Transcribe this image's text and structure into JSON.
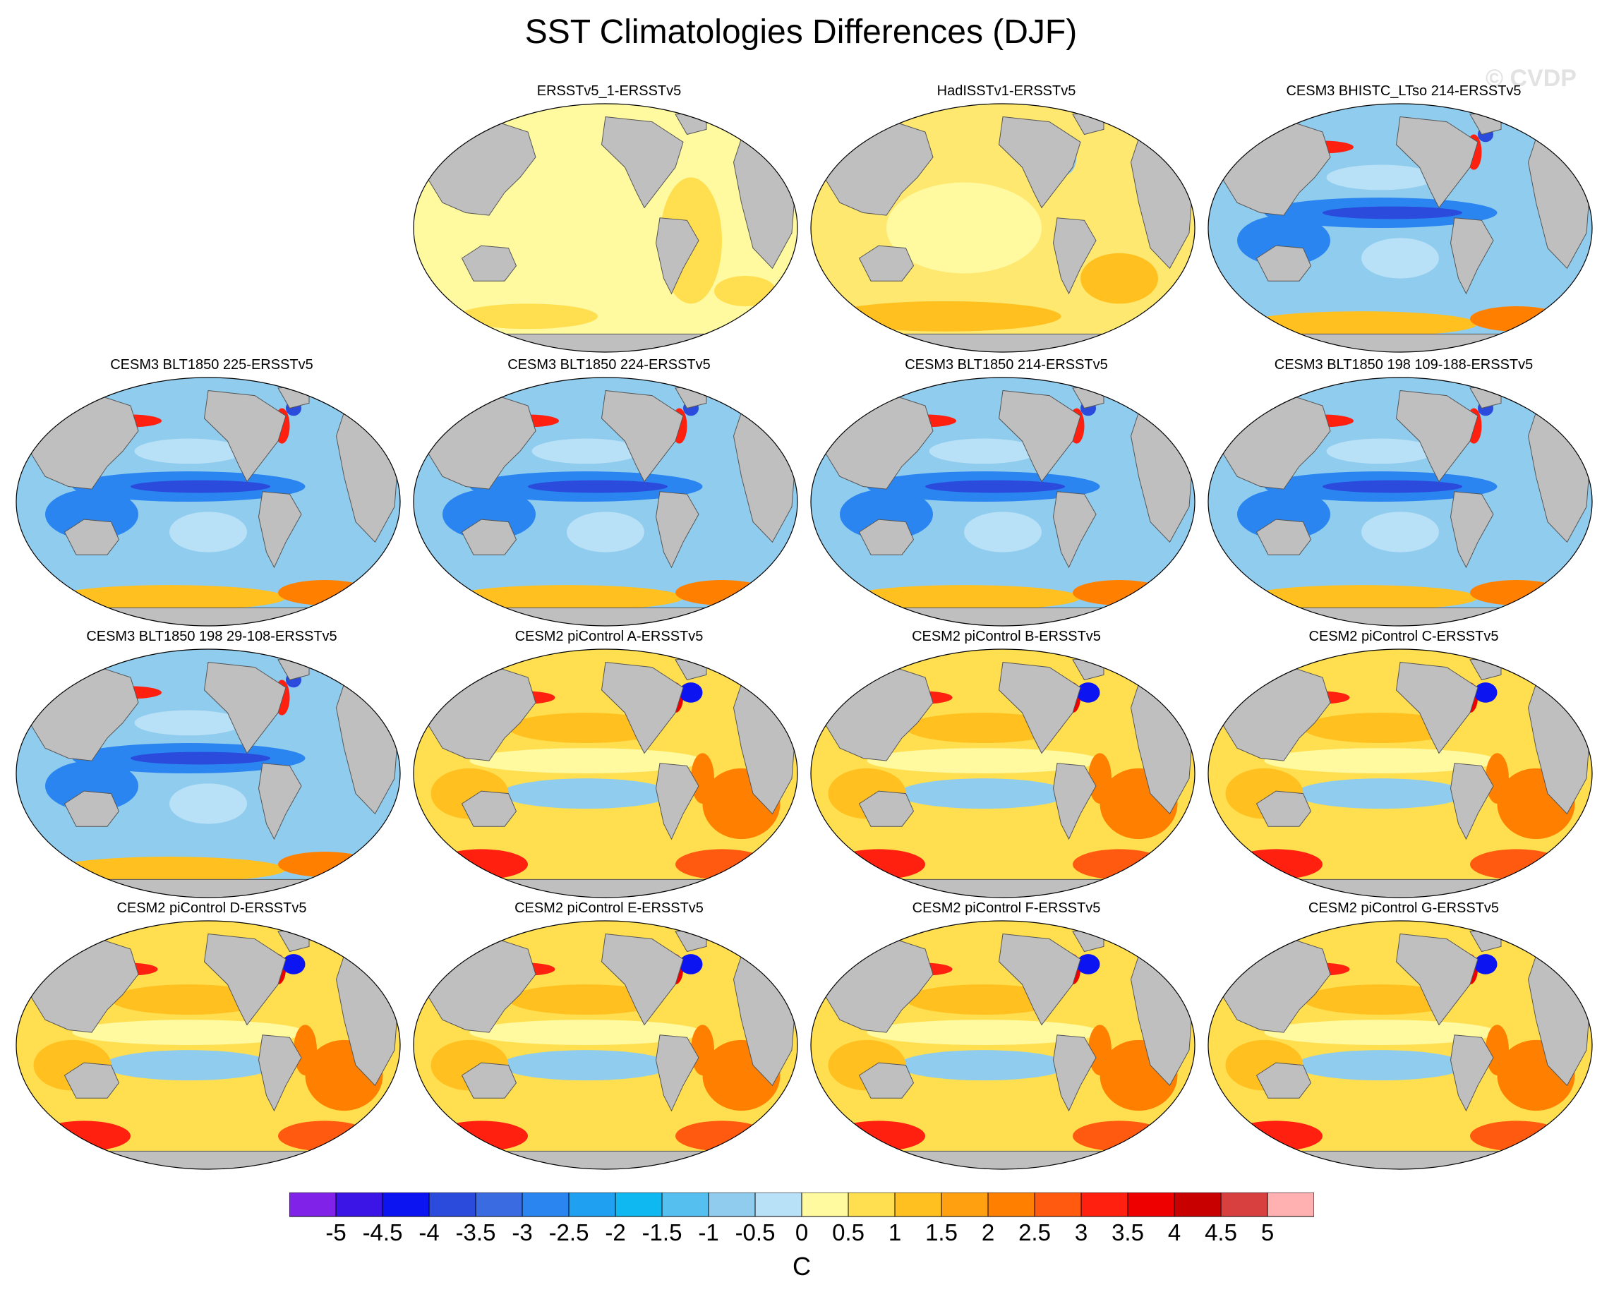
{
  "title": "SST Climatologies Differences (DJF)",
  "watermark": "© CVDP",
  "panels": [
    {
      "row": 0,
      "col": 1,
      "title": "ERSSTv5_1-ERSSTv5",
      "pattern": "obs_a"
    },
    {
      "row": 0,
      "col": 2,
      "title": "HadISSTv1-ERSSTv5",
      "pattern": "obs_b"
    },
    {
      "row": 0,
      "col": 3,
      "title": "CESM3 BHISTC_LTso 214-ERSSTv5",
      "pattern": "cold"
    },
    {
      "row": 1,
      "col": 0,
      "title": "CESM3 BLT1850 225-ERSSTv5",
      "pattern": "cold"
    },
    {
      "row": 1,
      "col": 1,
      "title": "CESM3 BLT1850 224-ERSSTv5",
      "pattern": "cold"
    },
    {
      "row": 1,
      "col": 2,
      "title": "CESM3 BLT1850 214-ERSSTv5",
      "pattern": "cold"
    },
    {
      "row": 1,
      "col": 3,
      "title": "CESM3 BLT1850 198 109-188-ERSSTv5",
      "pattern": "cold"
    },
    {
      "row": 2,
      "col": 0,
      "title": "CESM3 BLT1850 198 29-108-ERSSTv5",
      "pattern": "cold"
    },
    {
      "row": 2,
      "col": 1,
      "title": "CESM2 piControl A-ERSSTv5",
      "pattern": "warm"
    },
    {
      "row": 2,
      "col": 2,
      "title": "CESM2 piControl B-ERSSTv5",
      "pattern": "warm"
    },
    {
      "row": 2,
      "col": 3,
      "title": "CESM2 piControl C-ERSSTv5",
      "pattern": "warm"
    },
    {
      "row": 3,
      "col": 0,
      "title": "CESM2 piControl D-ERSSTv5",
      "pattern": "warm"
    },
    {
      "row": 3,
      "col": 1,
      "title": "CESM2 piControl E-ERSSTv5",
      "pattern": "warm"
    },
    {
      "row": 3,
      "col": 2,
      "title": "CESM2 piControl F-ERSSTv5",
      "pattern": "warm"
    },
    {
      "row": 3,
      "col": 3,
      "title": "CESM2 piControl G-ERSSTv5",
      "pattern": "warm"
    }
  ],
  "colorbar": {
    "unit": "C",
    "tick_labels": [
      "-5",
      "-4.5",
      "-4",
      "-3.5",
      "-3",
      "-2.5",
      "-2",
      "-1.5",
      "-1",
      "-0.5",
      "0",
      "0.5",
      "1",
      "1.5",
      "2",
      "2.5",
      "3",
      "3.5",
      "4",
      "4.5",
      "5"
    ],
    "colors": [
      "#8122e8",
      "#3b14e6",
      "#0c14f2",
      "#2a4bdc",
      "#3a6be0",
      "#2a85f0",
      "#1fa0f0",
      "#0fb8f0",
      "#55c0f0",
      "#90ccee",
      "#b8e0f6",
      "#fff9a0",
      "#ffdf50",
      "#ffc020",
      "#ffa010",
      "#ff8000",
      "#ff5a10",
      "#ff2010",
      "#ee0000",
      "#c80000",
      "#d84040",
      "#ffb0b0"
    ]
  },
  "map_colors": {
    "land": "#bfbfbf",
    "obs_a": "#fff9a0",
    "obs_b": "#ffe870",
    "cold_base": "#90ccee",
    "warm_base": "#ffdf50"
  }
}
